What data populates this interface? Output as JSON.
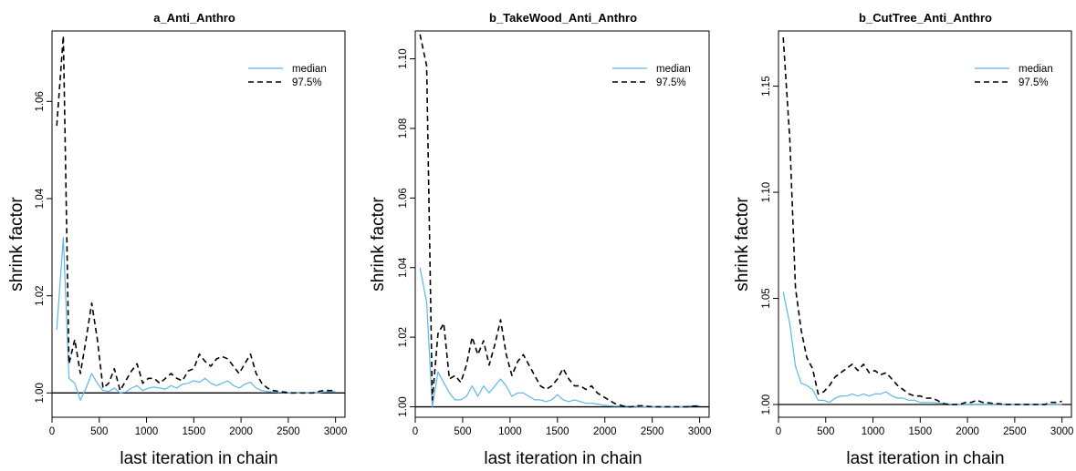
{
  "chart_data": [
    {
      "type": "line",
      "title": "a_Anti_Anthro",
      "xlabel": "last iteration in chain",
      "ylabel": "shrink factor",
      "xlim": [
        0,
        3100
      ],
      "ylim": [
        0.995,
        1.0745
      ],
      "xticks": [
        0,
        500,
        1000,
        1500,
        2000,
        2500,
        3000
      ],
      "yticks": [
        1.0,
        1.02,
        1.04,
        1.06
      ],
      "ytick_labels": [
        "1.00",
        "1.02",
        "1.04",
        "1.06"
      ],
      "hline": 1.0,
      "legend": {
        "position": "top-right",
        "entries": [
          "median",
          "97.5%"
        ]
      },
      "series": [
        {
          "name": "median",
          "color": "#5bb8e8",
          "dash": "",
          "x": [
            50,
            120,
            180,
            240,
            300,
            360,
            420,
            480,
            540,
            600,
            660,
            720,
            780,
            840,
            900,
            960,
            1020,
            1080,
            1140,
            1200,
            1260,
            1320,
            1380,
            1440,
            1500,
            1560,
            1620,
            1680,
            1740,
            1800,
            1860,
            1920,
            1980,
            2040,
            2100,
            2160,
            2220,
            2280,
            2340,
            2400,
            2460,
            2520,
            2580,
            2640,
            2700,
            2760,
            2820,
            2880,
            2940,
            3000
          ],
          "y": [
            1.013,
            1.032,
            1.003,
            1.002,
            0.9985,
            1.001,
            1.004,
            1.002,
            1.0005,
            1.0003,
            1.001,
            1.0,
            1.0002,
            1.001,
            1.0015,
            1.0005,
            1.001,
            1.0012,
            1.001,
            1.0008,
            1.0015,
            1.001,
            1.0018,
            1.002,
            1.0025,
            1.0022,
            1.003,
            1.002,
            1.0015,
            1.002,
            1.0025,
            1.0015,
            1.001,
            1.0018,
            1.0022,
            1.001,
            1.0005,
            1.0003,
            1.0002,
            1.0001,
            1.0001,
            1.0,
            1.0,
            1.0,
            1.0,
            1.0,
            1.0,
            1.0002,
            1.0003,
            1.0003
          ]
        },
        {
          "name": "97.5%",
          "color": "#000000",
          "dash": "6,4",
          "x": [
            50,
            120,
            180,
            240,
            300,
            360,
            420,
            480,
            540,
            600,
            660,
            720,
            780,
            840,
            900,
            960,
            1020,
            1080,
            1140,
            1200,
            1260,
            1320,
            1380,
            1440,
            1500,
            1560,
            1620,
            1680,
            1740,
            1800,
            1860,
            1920,
            1980,
            2040,
            2100,
            2160,
            2220,
            2280,
            2340,
            2400,
            2460,
            2520,
            2580,
            2640,
            2700,
            2760,
            2820,
            2880,
            2940,
            3000
          ],
          "y": [
            1.055,
            1.0735,
            1.006,
            1.011,
            1.004,
            1.011,
            1.0185,
            1.011,
            1.001,
            1.002,
            1.005,
            1.0005,
            1.0025,
            1.0045,
            1.006,
            1.002,
            1.003,
            1.003,
            1.002,
            1.003,
            1.004,
            1.003,
            1.0025,
            1.0045,
            1.005,
            1.008,
            1.0065,
            1.0055,
            1.007,
            1.0075,
            1.007,
            1.0055,
            1.004,
            1.006,
            1.008,
            1.004,
            1.002,
            1.001,
            1.0005,
            1.0003,
            1.0002,
            1.0,
            1.0,
            1.0,
            1.0,
            1.0,
            1.0003,
            1.0005,
            1.0005,
            1.0005
          ]
        }
      ]
    },
    {
      "type": "line",
      "title": "b_TakeWood_Anti_Anthro",
      "xlabel": "last iteration in chain",
      "ylabel": "shrink factor",
      "xlim": [
        0,
        3100
      ],
      "ylim": [
        0.997,
        1.108
      ],
      "xticks": [
        0,
        500,
        1000,
        1500,
        2000,
        2500,
        3000
      ],
      "yticks": [
        1.0,
        1.02,
        1.04,
        1.06,
        1.08,
        1.1
      ],
      "ytick_labels": [
        "1.00",
        "1.02",
        "1.04",
        "1.06",
        "1.08",
        "1.10"
      ],
      "hline": 1.0,
      "legend": {
        "position": "top-right",
        "entries": [
          "median",
          "97.5%"
        ]
      },
      "series": [
        {
          "name": "median",
          "color": "#5bb8e8",
          "dash": "",
          "x": [
            50,
            120,
            180,
            240,
            300,
            360,
            420,
            480,
            540,
            600,
            660,
            720,
            780,
            840,
            900,
            960,
            1020,
            1080,
            1140,
            1200,
            1260,
            1320,
            1380,
            1440,
            1500,
            1560,
            1620,
            1680,
            1740,
            1800,
            1860,
            1920,
            1980,
            2040,
            2100,
            2160,
            2220,
            2280,
            2340,
            2400,
            2460,
            2520,
            2580,
            2640,
            2700,
            2760,
            2820,
            2880,
            2940,
            3000
          ],
          "y": [
            1.04,
            1.03,
            1.0,
            1.01,
            1.007,
            1.004,
            1.002,
            1.002,
            1.003,
            1.006,
            1.003,
            1.006,
            1.004,
            1.006,
            1.008,
            1.006,
            1.003,
            1.004,
            1.004,
            1.003,
            1.002,
            1.002,
            1.0015,
            1.002,
            1.0035,
            1.002,
            1.0015,
            1.002,
            1.0015,
            1.001,
            1.001,
            1.0008,
            1.0005,
            1.0003,
            1.0002,
            1.0002,
            1.0002,
            1.0001,
            1.0001,
            1.0,
            1.0,
            1.0,
            1.0,
            1.0,
            1.0,
            1.0,
            1.0,
            1.0002,
            1.0003,
            1.0003
          ]
        },
        {
          "name": "97.5%",
          "color": "#000000",
          "dash": "6,4",
          "x": [
            50,
            120,
            180,
            240,
            300,
            360,
            420,
            480,
            540,
            600,
            660,
            720,
            780,
            840,
            900,
            960,
            1020,
            1080,
            1140,
            1200,
            1260,
            1320,
            1380,
            1440,
            1500,
            1560,
            1620,
            1680,
            1740,
            1800,
            1860,
            1920,
            1980,
            2040,
            2100,
            2160,
            2220,
            2280,
            2340,
            2400,
            2460,
            2520,
            2580,
            2640,
            2700,
            2760,
            2820,
            2880,
            2940,
            3000
          ],
          "y": [
            1.107,
            1.098,
            1.002,
            1.021,
            1.024,
            1.008,
            1.009,
            1.007,
            1.012,
            1.02,
            1.015,
            1.019,
            1.012,
            1.018,
            1.025,
            1.015,
            1.009,
            1.013,
            1.015,
            1.012,
            1.009,
            1.006,
            1.005,
            1.006,
            1.008,
            1.011,
            1.008,
            1.006,
            1.006,
            1.005,
            1.006,
            1.004,
            1.003,
            1.002,
            1.001,
            1.0005,
            1.0,
            1.0,
            1.0003,
            1.0003,
            1.0001,
            1.0,
            1.0,
            1.0,
            1.0,
            1.0,
            1.0,
            1.0,
            1.0002,
            1.0002
          ]
        }
      ]
    },
    {
      "type": "line",
      "title": "b_CutTree_Anti_Anthro",
      "xlabel": "last iteration in chain",
      "ylabel": "shrink factor",
      "xlim": [
        0,
        3100
      ],
      "ylim": [
        0.994,
        1.176
      ],
      "xticks": [
        0,
        500,
        1000,
        1500,
        2000,
        2500,
        3000
      ],
      "yticks": [
        1.0,
        1.05,
        1.1,
        1.15
      ],
      "ytick_labels": [
        "1.00",
        "1.05",
        "1.10",
        "1.15"
      ],
      "hline": 1.0,
      "legend": {
        "position": "top-right",
        "entries": [
          "median",
          "97.5%"
        ]
      },
      "series": [
        {
          "name": "median",
          "color": "#5bb8e8",
          "dash": "",
          "x": [
            50,
            120,
            180,
            240,
            300,
            360,
            420,
            480,
            540,
            600,
            660,
            720,
            780,
            840,
            900,
            960,
            1020,
            1080,
            1140,
            1200,
            1260,
            1320,
            1380,
            1440,
            1500,
            1560,
            1620,
            1680,
            1740,
            1800,
            1860,
            1920,
            1980,
            2040,
            2100,
            2160,
            2220,
            2280,
            2340,
            2400,
            2460,
            2520,
            2580,
            2640,
            2700,
            2760,
            2820,
            2880,
            2940,
            3000
          ],
          "y": [
            1.053,
            1.038,
            1.018,
            1.01,
            1.009,
            1.007,
            1.002,
            1.002,
            1.001,
            1.003,
            1.004,
            1.004,
            1.005,
            1.004,
            1.005,
            1.004,
            1.005,
            1.005,
            1.006,
            1.004,
            1.003,
            1.003,
            1.002,
            1.002,
            1.001,
            1.001,
            1.001,
            1.0008,
            1.0005,
            1.0003,
            1.0,
            1.0,
            1.0,
            1.0,
            1.0,
            1.0,
            1.0,
            1.0,
            1.0,
            1.0,
            1.0,
            1.0,
            1.0,
            1.0,
            1.0,
            1.0,
            1.0,
            1.0,
            1.0,
            1.0
          ]
        },
        {
          "name": "97.5%",
          "color": "#000000",
          "dash": "6,4",
          "x": [
            50,
            120,
            180,
            240,
            300,
            360,
            420,
            480,
            540,
            600,
            660,
            720,
            780,
            840,
            900,
            960,
            1020,
            1080,
            1140,
            1200,
            1260,
            1320,
            1380,
            1440,
            1500,
            1560,
            1620,
            1680,
            1740,
            1800,
            1860,
            1920,
            1980,
            2040,
            2100,
            2160,
            2220,
            2280,
            2340,
            2400,
            2460,
            2520,
            2580,
            2640,
            2700,
            2760,
            2820,
            2880,
            2940,
            3000
          ],
          "y": [
            1.173,
            1.125,
            1.055,
            1.035,
            1.022,
            1.017,
            1.005,
            1.006,
            1.009,
            1.013,
            1.015,
            1.017,
            1.019,
            1.016,
            1.019,
            1.015,
            1.016,
            1.014,
            1.015,
            1.012,
            1.009,
            1.007,
            1.005,
            1.004,
            1.004,
            1.003,
            1.003,
            1.002,
            1.0005,
            1.0,
            1.0,
            1.0,
            1.001,
            1.001,
            1.002,
            1.001,
            1.0008,
            1.0005,
            1.0003,
            1.0,
            1.0,
            1.0,
            1.0,
            1.0,
            1.0,
            1.0,
            1.0,
            1.001,
            1.001,
            1.0015
          ]
        }
      ]
    }
  ]
}
